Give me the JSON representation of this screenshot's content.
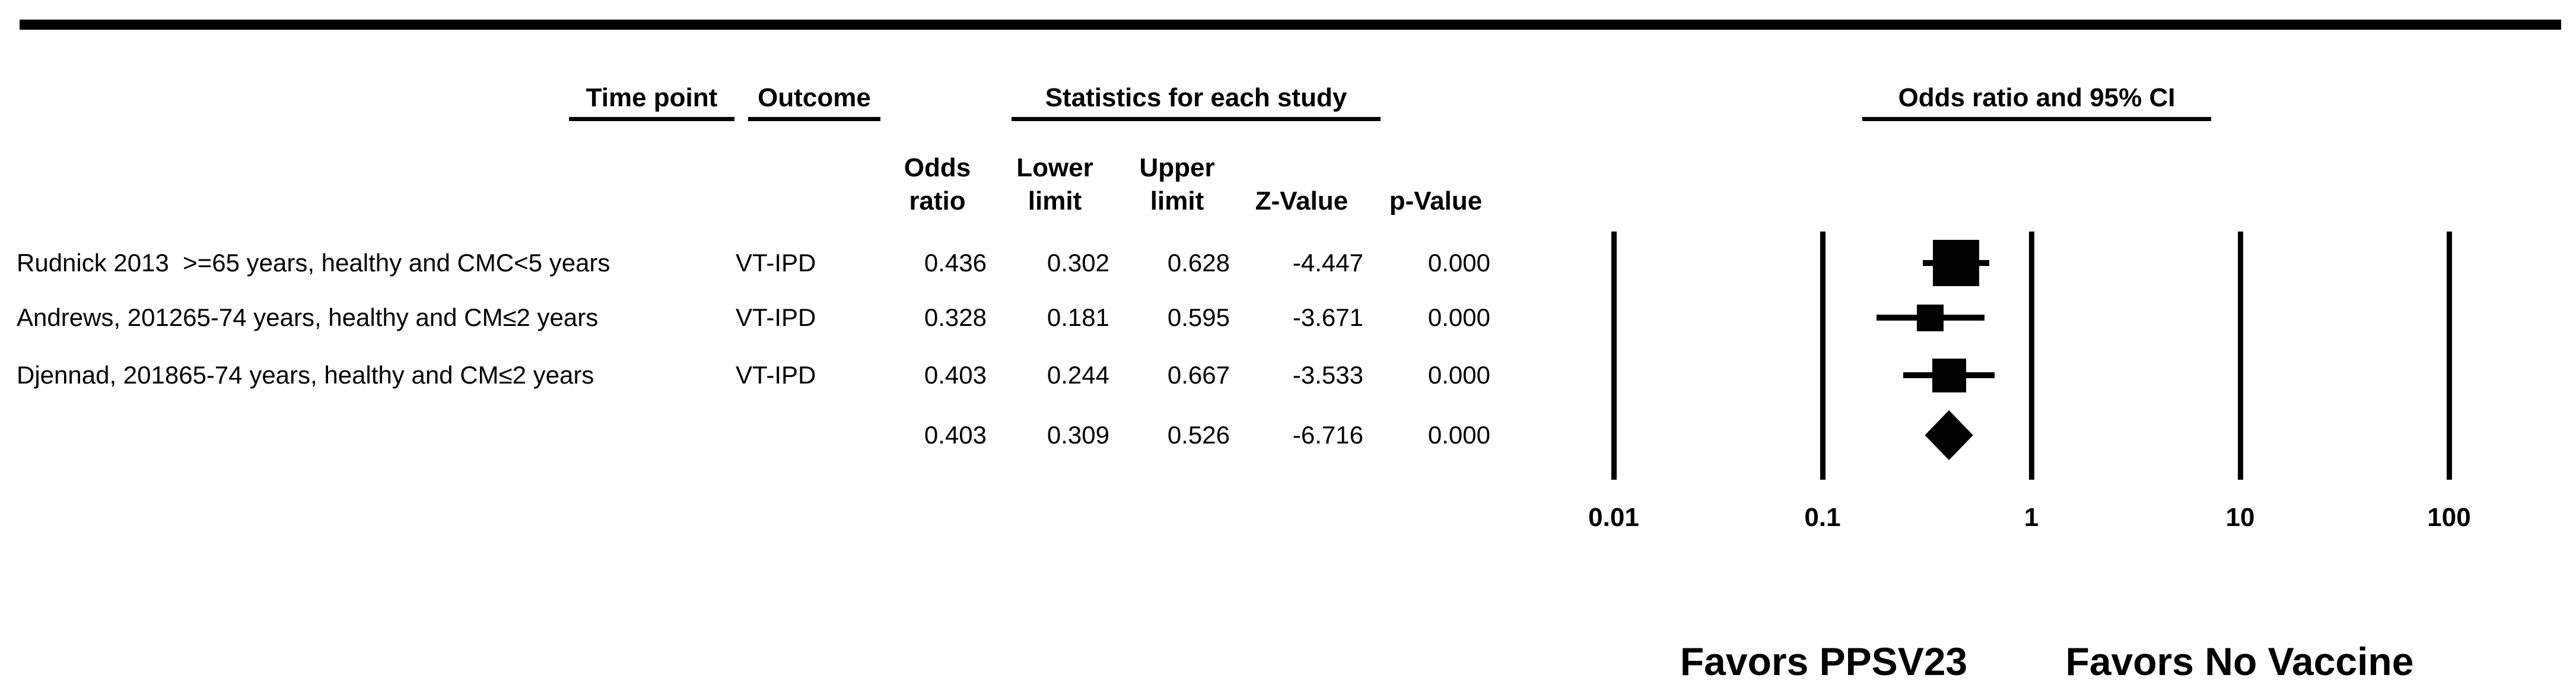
{
  "header": {
    "time_point_label": "Time point",
    "outcome_label": "Outcome",
    "statistics_label": "Statistics for each study",
    "plot_label": "Odds ratio and 95% CI",
    "stat_columns": [
      {
        "line1": "Odds",
        "line2": "ratio"
      },
      {
        "line1": "Lower",
        "line2": "limit"
      },
      {
        "line1": "Upper",
        "line2": "limit"
      },
      {
        "line1": "",
        "line2": "Z-Value"
      },
      {
        "line1": "",
        "line2": "p-Value"
      }
    ]
  },
  "chart_data": {
    "type": "forest",
    "x_scale": "log10",
    "x_ticks": [
      0.01,
      0.1,
      1,
      10,
      100
    ],
    "x_tick_labels": [
      "0.01",
      "0.1",
      "1",
      "10",
      "100"
    ],
    "columns": [
      "Odds ratio",
      "Lower limit",
      "Upper limit",
      "Z-Value",
      "p-Value"
    ],
    "studies": [
      {
        "label": "Rudnick 2013  >=65 years, healthy and CMC<5 years",
        "outcome": "VT-IPD",
        "odds_ratio": "0.436",
        "lower": "0.302",
        "upper": "0.628",
        "z_value": "-4.447",
        "p_value": "0.000",
        "symbol_size": 78
      },
      {
        "label": "Andrews, 201265-74 years, healthy and CM≤2 years",
        "outcome": "VT-IPD",
        "odds_ratio": "0.328",
        "lower": "0.181",
        "upper": "0.595",
        "z_value": "-3.671",
        "p_value": "0.000",
        "symbol_size": 45
      },
      {
        "label": "Djennad, 201865-74 years, healthy and CM≤2 years",
        "outcome": "VT-IPD",
        "odds_ratio": "0.403",
        "lower": "0.244",
        "upper": "0.667",
        "z_value": "-3.533",
        "p_value": "0.000",
        "symbol_size": 57
      }
    ],
    "summary": {
      "label": "",
      "outcome": "",
      "odds_ratio": "0.403",
      "lower": "0.309",
      "upper": "0.526",
      "z_value": "-6.716",
      "p_value": "0.000"
    },
    "footer_left": "Favors PPSV23",
    "footer_right": "Favors No Vaccine"
  }
}
